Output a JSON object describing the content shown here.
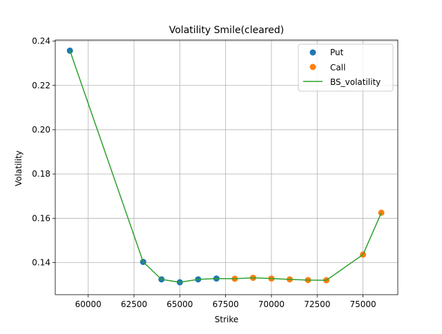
{
  "chart_data": {
    "type": "scatter",
    "title": "Volatility Smile(cleared)",
    "xlabel": "Strike",
    "ylabel": "Volatility",
    "xlim": [
      58200,
      76900
    ],
    "ylim": [
      0.1255,
      0.2405
    ],
    "xticks": [
      60000,
      62500,
      65000,
      67500,
      70000,
      72500,
      75000
    ],
    "xtick_labels": [
      "60000",
      "62500",
      "65000",
      "67500",
      "70000",
      "72500",
      "75000"
    ],
    "yticks": [
      0.14,
      0.16,
      0.18,
      0.2,
      0.22,
      0.24
    ],
    "ytick_labels": [
      "0.14",
      "0.16",
      "0.18",
      "0.20",
      "0.22",
      "0.24"
    ],
    "grid": true,
    "legend_position": "top-right",
    "series": [
      {
        "name": "Put",
        "kind": "scatter",
        "color": "#1f77b4",
        "x": [
          59000,
          63000,
          64000,
          65000,
          66000,
          67000
        ],
        "y": [
          0.2357,
          0.1403,
          0.1324,
          0.1311,
          0.1324,
          0.1328
        ]
      },
      {
        "name": "Call",
        "kind": "scatter",
        "color": "#ff7f0e",
        "x": [
          68000,
          69000,
          70000,
          71000,
          72000,
          73000,
          75000,
          76000
        ],
        "y": [
          0.1327,
          0.1331,
          0.1328,
          0.1324,
          0.1321,
          0.132,
          0.1436,
          0.1625
        ]
      },
      {
        "name": "BS_volatility",
        "kind": "line",
        "color": "#2ca02c",
        "x": [
          59000,
          63000,
          64000,
          65000,
          66000,
          67000,
          68000,
          69000,
          70000,
          71000,
          72000,
          73000,
          75000,
          76000
        ],
        "y": [
          0.2357,
          0.1403,
          0.1324,
          0.1311,
          0.1324,
          0.1328,
          0.1327,
          0.1331,
          0.1328,
          0.1324,
          0.1321,
          0.132,
          0.1436,
          0.1625
        ]
      }
    ]
  }
}
